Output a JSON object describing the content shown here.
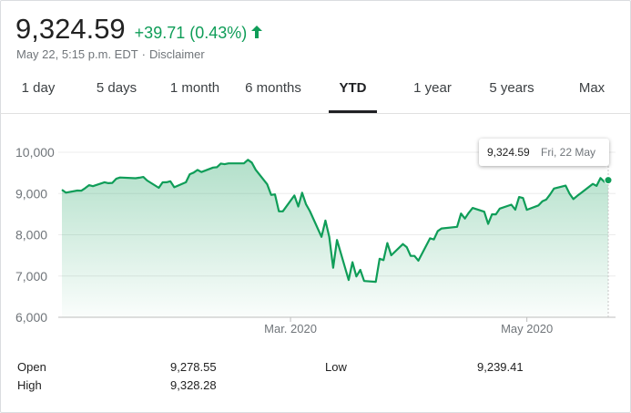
{
  "quote": {
    "price": "9,324.59",
    "change": "+39.71 (0.43%)",
    "timestamp": "May 22, 5:15 p.m. EDT",
    "separator": "·",
    "disclaimer": "Disclaimer",
    "direction_icon": "arrow-up-icon",
    "up_color": "#0f9d58"
  },
  "tabs": [
    {
      "label": "1 day",
      "active": false
    },
    {
      "label": "5 days",
      "active": false
    },
    {
      "label": "1 month",
      "active": false
    },
    {
      "label": "6 months",
      "active": false
    },
    {
      "label": "YTD",
      "active": true
    },
    {
      "label": "1 year",
      "active": false
    },
    {
      "label": "5 years",
      "active": false
    },
    {
      "label": "Max",
      "active": false
    }
  ],
  "tooltip": {
    "value": "9,324.59",
    "date": "Fri, 22 May"
  },
  "stats": {
    "open_label": "Open",
    "open_value": "9,278.55",
    "high_label": "High",
    "high_value": "9,328.28",
    "low_label": "Low",
    "low_value": "9,239.41"
  },
  "chart_data": {
    "type": "area",
    "y_ticks": [
      "10,000",
      "9,000",
      "8,000",
      "7,000",
      "6,000"
    ],
    "y_tick_values": [
      10000,
      9000,
      8000,
      7000,
      6000
    ],
    "ylim": [
      6000,
      10000
    ],
    "x_ticks": [
      "Mar. 2020",
      "May 2020"
    ],
    "x_tick_dates": [
      "2020-03-01",
      "2020-05-01"
    ],
    "xlim": [
      "2020-01-02",
      "2020-05-22"
    ],
    "grid": true,
    "line_color": "#0f9d58",
    "series": [
      {
        "x": [
          "2020-01-02",
          "2020-01-03",
          "2020-01-06",
          "2020-01-07",
          "2020-01-08",
          "2020-01-09",
          "2020-01-10",
          "2020-01-13",
          "2020-01-14",
          "2020-01-15",
          "2020-01-16",
          "2020-01-17",
          "2020-01-21",
          "2020-01-22",
          "2020-01-23",
          "2020-01-24",
          "2020-01-27",
          "2020-01-28",
          "2020-01-29",
          "2020-01-30",
          "2020-01-31",
          "2020-02-03",
          "2020-02-04",
          "2020-02-05",
          "2020-02-06",
          "2020-02-07",
          "2020-02-10",
          "2020-02-11",
          "2020-02-12",
          "2020-02-13",
          "2020-02-14",
          "2020-02-18",
          "2020-02-19",
          "2020-02-20",
          "2020-02-21",
          "2020-02-24",
          "2020-02-25",
          "2020-02-26",
          "2020-02-27",
          "2020-02-28",
          "2020-03-02",
          "2020-03-03",
          "2020-03-04",
          "2020-03-05",
          "2020-03-06",
          "2020-03-09",
          "2020-03-10",
          "2020-03-11",
          "2020-03-12",
          "2020-03-13",
          "2020-03-16",
          "2020-03-17",
          "2020-03-18",
          "2020-03-19",
          "2020-03-20",
          "2020-03-23",
          "2020-03-24",
          "2020-03-25",
          "2020-03-26",
          "2020-03-27",
          "2020-03-30",
          "2020-03-31",
          "2020-04-01",
          "2020-04-02",
          "2020-04-03",
          "2020-04-06",
          "2020-04-07",
          "2020-04-08",
          "2020-04-09",
          "2020-04-13",
          "2020-04-14",
          "2020-04-15",
          "2020-04-16",
          "2020-04-17",
          "2020-04-20",
          "2020-04-21",
          "2020-04-22",
          "2020-04-23",
          "2020-04-24",
          "2020-04-27",
          "2020-04-28",
          "2020-04-29",
          "2020-04-30",
          "2020-05-01",
          "2020-05-04",
          "2020-05-05",
          "2020-05-06",
          "2020-05-07",
          "2020-05-08",
          "2020-05-11",
          "2020-05-12",
          "2020-05-13",
          "2020-05-14",
          "2020-05-15",
          "2020-05-18",
          "2020-05-19",
          "2020-05-20",
          "2020-05-21",
          "2020-05-22"
        ],
        "y": [
          9092,
          9020,
          9071,
          9068,
          9129,
          9203,
          9178,
          9274,
          9251,
          9258,
          9357,
          9388,
          9370,
          9383,
          9402,
          9314,
          9139,
          9270,
          9273,
          9298,
          9151,
          9273,
          9467,
          9508,
          9572,
          9520,
          9628,
          9638,
          9725,
          9711,
          9731,
          9732,
          9817,
          9750,
          9576,
          9221,
          8966,
          8980,
          8567,
          8567,
          8952,
          8684,
          9018,
          8738,
          8575,
          7950,
          8344,
          7952,
          7201,
          7875,
          6904,
          7335,
          6989,
          7150,
          6879,
          6860,
          7418,
          7385,
          7798,
          7502,
          7774,
          7700,
          7487,
          7487,
          7373,
          7913,
          7887,
          8090,
          8153,
          8192,
          8515,
          8393,
          8532,
          8650,
          8560,
          8263,
          8495,
          8494,
          8634,
          8730,
          8607,
          8915,
          8890,
          8605,
          8711,
          8810,
          8854,
          8980,
          9121,
          9192,
          9002,
          8863,
          8943,
          9014,
          9234,
          9185,
          9375,
          9284,
          9324
        ]
      }
    ]
  }
}
